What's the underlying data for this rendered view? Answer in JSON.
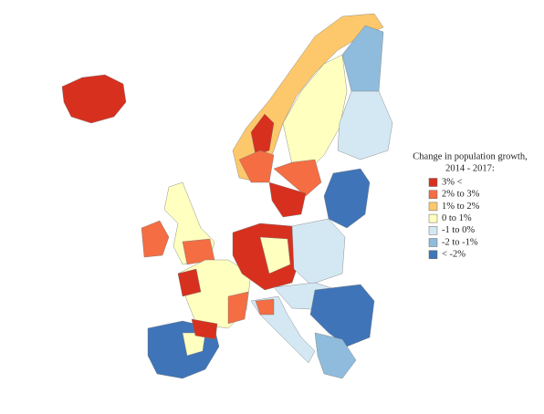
{
  "legend": {
    "title_lines": [
      "Change in population growth,",
      "2014 - 2017:"
    ],
    "items": [
      {
        "label": "3% <",
        "color": "#d7301f"
      },
      {
        "label": "2% to 3%",
        "color": "#f46d43"
      },
      {
        "label": "1% to 2%",
        "color": "#fdc86b"
      },
      {
        "label": "0 to 1%",
        "color": "#ffffbf"
      },
      {
        "label": "-1 to 0%",
        "color": "#d4e8f4"
      },
      {
        "label": "-2 to -1%",
        "color": "#8fbcdc"
      },
      {
        "label": "< -2%",
        "color": "#3f74b8"
      }
    ]
  }
}
